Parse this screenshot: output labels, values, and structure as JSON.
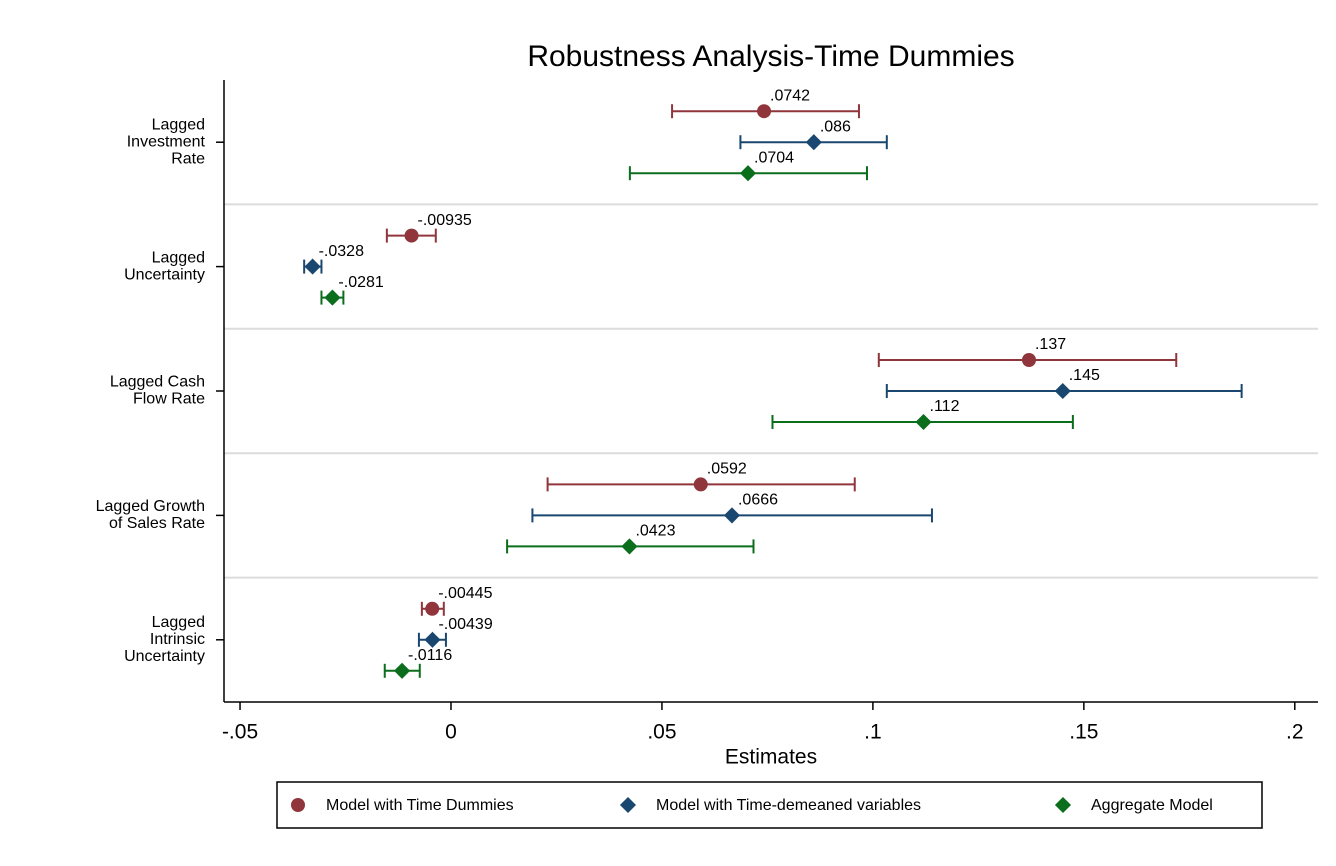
{
  "chart_data": {
    "type": "coefplot",
    "title": "Robustness Analysis-Time Dummies",
    "x_label": "Estimates",
    "categories": [
      [
        "Lagged",
        "Investment",
        "Rate"
      ],
      [
        "Lagged",
        "Uncertainty"
      ],
      [
        "Lagged Cash",
        "Flow Rate"
      ],
      [
        "Lagged Growth",
        "of Sales Rate"
      ],
      [
        "Lagged",
        "Intrinsic",
        "Uncertainty"
      ]
    ],
    "series": [
      {
        "name": "Model with Time Dummies",
        "color": "#90353b",
        "marker": "circle",
        "values": [
          0.0742,
          -0.00935,
          0.137,
          0.0592,
          -0.00445
        ],
        "value_labels": [
          ".0742",
          "-.00935",
          ".137",
          ".0592",
          "-.00445"
        ],
        "lower": [
          0.0524,
          -0.0152,
          0.1014,
          0.0229,
          -0.0069
        ],
        "upper": [
          0.0967,
          -0.0036,
          0.1719,
          0.0957,
          -0.0017
        ]
      },
      {
        "name": "Model with Time-demeaned variables",
        "color": "#1a476f",
        "marker": "diamond",
        "values": [
          0.086,
          -0.0328,
          0.145,
          0.0666,
          -0.00439
        ],
        "value_labels": [
          ".086",
          "-.0328",
          ".145",
          ".0666",
          "-.00439"
        ],
        "lower": [
          0.0686,
          -0.0348,
          0.1033,
          0.0193,
          -0.0076
        ],
        "upper": [
          0.1033,
          -0.0307,
          0.1874,
          0.114,
          -0.0012
        ]
      },
      {
        "name": "Aggregate Model",
        "color": "#0b6e1c",
        "marker": "diamond",
        "values": [
          0.0704,
          -0.0281,
          0.112,
          0.0423,
          -0.0116
        ],
        "value_labels": [
          ".0704",
          "-.0281",
          ".112",
          ".0423",
          "-.0116"
        ],
        "lower": [
          0.0424,
          -0.0307,
          0.0762,
          0.0133,
          -0.0157
        ],
        "upper": [
          0.0986,
          -0.0255,
          0.1474,
          0.0717,
          -0.0074
        ]
      }
    ],
    "xlim": [
      -0.0538,
      0.2055
    ],
    "xticks": [
      {
        "value": -0.05,
        "label": "-.05"
      },
      0,
      {
        "value": 0.05,
        "label": ".05"
      },
      {
        "value": 0.1,
        "label": ".1"
      },
      {
        "value": 0.15,
        "label": ".15"
      },
      {
        "value": 0.2,
        "label": ".2"
      }
    ],
    "grid": true,
    "legend": "bottom"
  }
}
